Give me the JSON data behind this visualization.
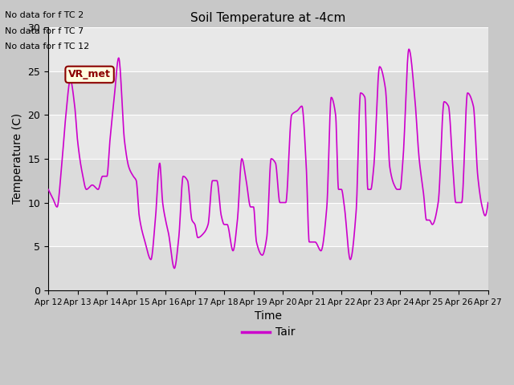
{
  "title": "Soil Temperature at -4cm",
  "xlabel": "Time",
  "ylabel": "Temperature (C)",
  "ylim": [
    0,
    30
  ],
  "yticks": [
    0,
    5,
    10,
    15,
    20,
    25,
    30
  ],
  "line_color": "#CC00CC",
  "line_width": 1.2,
  "legend_label": "Tair",
  "legend_color": "#CC00CC",
  "fig_facecolor": "#D8D8D8",
  "plot_facecolor": "#E0E0E0",
  "annotations": [
    "No data for f TC 2",
    "No data for f TC 7",
    "No data for f TC 12"
  ],
  "vr_met_label": "VR_met",
  "x_tick_labels": [
    "Apr 12",
    "Apr 13",
    "Apr 14",
    "Apr 15",
    "Apr 16",
    "Apr 17",
    "Apr 18",
    "Apr 19",
    "Apr 20",
    "Apr 21",
    "Apr 22",
    "Apr 23",
    "Apr 24",
    "Apr 25",
    "Apr 26",
    "Apr 27"
  ]
}
